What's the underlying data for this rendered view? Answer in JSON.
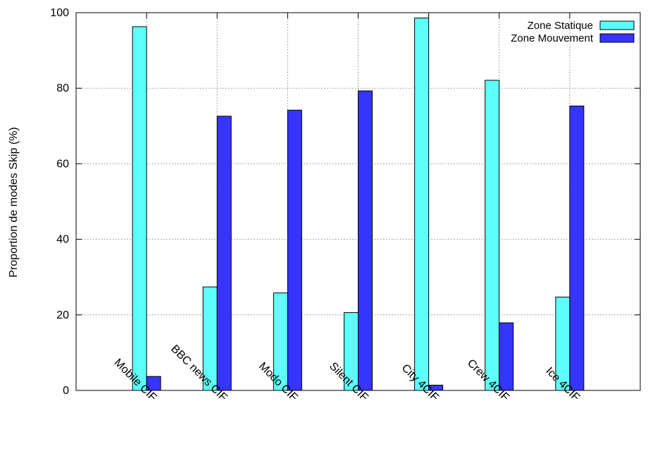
{
  "chart_data": {
    "type": "bar",
    "title": "",
    "xlabel": "",
    "ylabel": "Proportion de modes Skip (%)",
    "ylim": [
      0,
      100
    ],
    "yticks": [
      0,
      20,
      40,
      60,
      80,
      100
    ],
    "categories": [
      "Mobile CIF",
      "BBC news CIF",
      "Modo CIF",
      "Silent CIF",
      "City 4CIF",
      "Crew 4CIF",
      "Ice 4CIF"
    ],
    "series": [
      {
        "name": "Zone Statique",
        "color": "#5efffa",
        "values": [
          96.3,
          27.4,
          25.8,
          20.6,
          98.6,
          82.1,
          24.7
        ]
      },
      {
        "name": "Zone Mouvement",
        "color": "#3535ff",
        "values": [
          3.7,
          72.6,
          74.2,
          79.3,
          1.4,
          17.9,
          75.3
        ]
      }
    ],
    "grid": true,
    "legend_position": "top-right"
  }
}
